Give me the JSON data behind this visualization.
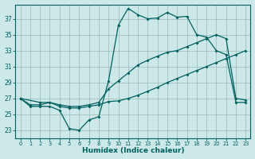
{
  "xlabel": "Humidex (Indice chaleur)",
  "background_color": "#cce8e8",
  "grid_color": "#99bbbb",
  "line_color": "#006060",
  "xlim": [
    -0.5,
    23.5
  ],
  "ylim": [
    22.0,
    38.8
  ],
  "yticks": [
    23,
    25,
    27,
    29,
    31,
    33,
    35,
    37
  ],
  "xticks": [
    0,
    1,
    2,
    3,
    4,
    5,
    6,
    7,
    8,
    9,
    10,
    11,
    12,
    13,
    14,
    15,
    16,
    17,
    18,
    19,
    20,
    21,
    22,
    23
  ],
  "line1_x": [
    0,
    1,
    2,
    3,
    4,
    5,
    6,
    7,
    8,
    9,
    10,
    11,
    12,
    13,
    14,
    15,
    16,
    17,
    18,
    19,
    20,
    21,
    22,
    23
  ],
  "line1_y": [
    27.0,
    26.0,
    26.0,
    26.0,
    25.5,
    23.2,
    23.0,
    24.3,
    24.7,
    29.2,
    36.2,
    38.3,
    37.5,
    37.0,
    37.1,
    37.8,
    37.2,
    37.3,
    35.0,
    34.7,
    33.0,
    32.5,
    26.5,
    26.5
  ],
  "line2_x": [
    0,
    2,
    3,
    4,
    5,
    6,
    7,
    8,
    9,
    10,
    11,
    12,
    13,
    14,
    15,
    16,
    17,
    18,
    19,
    20,
    21,
    22,
    23
  ],
  "line2_y": [
    27.0,
    26.5,
    26.5,
    26.2,
    26.0,
    26.0,
    26.2,
    26.5,
    28.2,
    29.2,
    30.2,
    31.2,
    31.8,
    32.3,
    32.8,
    33.0,
    33.5,
    34.0,
    34.5,
    35.0,
    34.5,
    27.0,
    26.8
  ],
  "line3_x": [
    0,
    1,
    2,
    3,
    4,
    5,
    6,
    7,
    8,
    9,
    10,
    11,
    12,
    13,
    14,
    15,
    16,
    17,
    18,
    19,
    20,
    21,
    22,
    23
  ],
  "line3_y": [
    27.0,
    26.2,
    26.2,
    26.5,
    26.0,
    25.8,
    25.8,
    26.0,
    26.2,
    26.6,
    26.7,
    27.0,
    27.4,
    27.9,
    28.4,
    29.0,
    29.5,
    30.0,
    30.5,
    31.0,
    31.5,
    32.0,
    32.5,
    33.0
  ]
}
